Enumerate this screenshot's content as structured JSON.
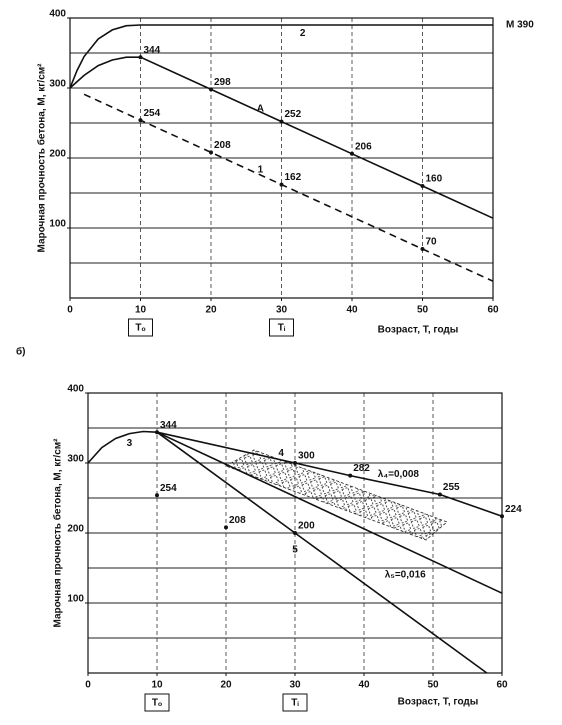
{
  "chart_data": [
    {
      "type": "line",
      "y_label": "Марочная прочность бетона, М, кг/см²",
      "x_label": "Возраст, Т, годы",
      "xlim": [
        0,
        60
      ],
      "ylim": [
        0,
        400
      ],
      "xticks": [
        0,
        10,
        20,
        30,
        40,
        50,
        60
      ],
      "yticks": [
        100,
        200,
        300,
        400
      ],
      "ygrid": [
        50,
        100,
        150,
        200,
        250,
        300,
        350
      ],
      "xgrid": [
        10,
        20,
        30,
        40,
        50
      ],
      "grid": true,
      "color": "#111",
      "x_markers": [
        {
          "value": 10,
          "label": "Tₒ"
        },
        {
          "value": 30,
          "label": "Tᵢ"
        }
      ],
      "annotations": [
        "М 390"
      ],
      "lines": [
        {
          "label": "2",
          "style": "solid",
          "x": [
            0,
            1,
            2,
            4,
            6,
            8,
            10,
            60
          ],
          "values": [
            300,
            325,
            345,
            370,
            383,
            389,
            390,
            390
          ],
          "label_points": []
        },
        {
          "label": "A",
          "style": "solid",
          "x": [
            0,
            2,
            4,
            6,
            8,
            10,
            20,
            30,
            40,
            50,
            60
          ],
          "values": [
            300,
            318,
            332,
            340,
            344,
            344,
            298,
            252,
            206,
            160,
            114
          ],
          "label_points": [
            5,
            6,
            7,
            8,
            9
          ]
        },
        {
          "label": "1",
          "style": "dashed",
          "x": [
            2,
            10,
            20,
            30,
            50,
            60
          ],
          "values": [
            291,
            254,
            208,
            162,
            70,
            24
          ],
          "label_points": [
            1,
            2,
            3,
            4
          ]
        }
      ],
      "points": []
    },
    {
      "type": "line",
      "panel_label": "б)",
      "y_label": "Марочная прочность бетона, М, кг/см²",
      "x_label": "Возраст, Т, годы",
      "xlim": [
        0,
        60
      ],
      "ylim": [
        0,
        400
      ],
      "xticks": [
        0,
        10,
        20,
        30,
        40,
        50,
        60
      ],
      "yticks": [
        100,
        200,
        300,
        400
      ],
      "ygrid": [
        50,
        100,
        150,
        200,
        250,
        300,
        350
      ],
      "xgrid": [
        10,
        20,
        30,
        40,
        50
      ],
      "grid": true,
      "color": "#111",
      "x_markers": [
        {
          "value": 10,
          "label": "Tₒ"
        },
        {
          "value": 30,
          "label": "Tᵢ"
        }
      ],
      "annotations": [
        "λ₄=0,008",
        "λ₅=0,016"
      ],
      "lines": [
        {
          "label": "3",
          "style": "solid",
          "x": [
            0,
            2,
            4,
            6,
            8,
            10
          ],
          "values": [
            300,
            322,
            335,
            342,
            345,
            344
          ],
          "label_points": []
        },
        {
          "label": "4",
          "style": "solid",
          "x": [
            10,
            30,
            38,
            51,
            60
          ],
          "values": [
            344,
            300,
            282,
            255,
            224
          ],
          "label_points": [
            0,
            1,
            2,
            3,
            4
          ]
        },
        {
          "style": "solid",
          "x": [
            10,
            60
          ],
          "values": [
            344,
            114
          ],
          "label_points": []
        },
        {
          "label": "5",
          "style": "solid",
          "x": [
            10,
            30,
            57.8
          ],
          "values": [
            344,
            200,
            0
          ],
          "label_points": [
            1
          ]
        }
      ],
      "points": [
        {
          "x": [
            10,
            20
          ],
          "values": [
            254,
            208
          ]
        }
      ]
    }
  ]
}
